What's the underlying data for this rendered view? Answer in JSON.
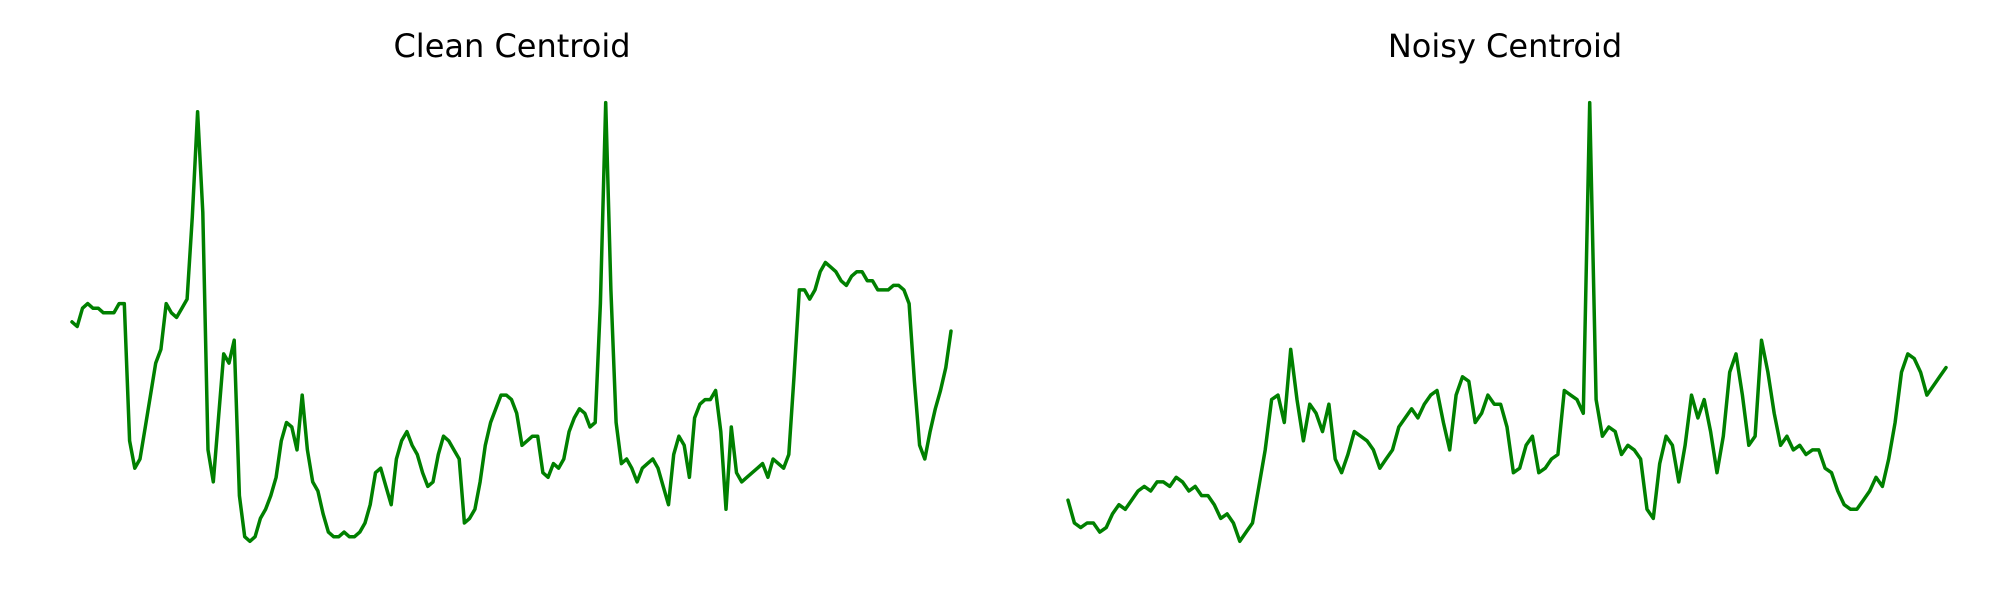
{
  "figure": {
    "line_color": "#008000",
    "background": "#ffffff"
  },
  "chart_data": [
    {
      "type": "line",
      "title": "Clean Centroid",
      "xlabel": "",
      "ylabel": "",
      "grid": false,
      "axes_visible": false,
      "ylim": [
        0,
        1
      ],
      "values": [
        0.51,
        0.5,
        0.54,
        0.55,
        0.54,
        0.54,
        0.53,
        0.53,
        0.53,
        0.55,
        0.55,
        0.25,
        0.19,
        0.21,
        0.28,
        0.35,
        0.42,
        0.45,
        0.55,
        0.53,
        0.52,
        0.54,
        0.56,
        0.74,
        0.97,
        0.75,
        0.23,
        0.16,
        0.3,
        0.44,
        0.42,
        0.47,
        0.13,
        0.04,
        0.03,
        0.04,
        0.08,
        0.1,
        0.13,
        0.17,
        0.25,
        0.29,
        0.28,
        0.23,
        0.35,
        0.23,
        0.16,
        0.14,
        0.09,
        0.05,
        0.04,
        0.04,
        0.05,
        0.04,
        0.04,
        0.05,
        0.07,
        0.11,
        0.18,
        0.19,
        0.15,
        0.11,
        0.21,
        0.25,
        0.27,
        0.24,
        0.22,
        0.18,
        0.15,
        0.16,
        0.22,
        0.26,
        0.25,
        0.23,
        0.21,
        0.07,
        0.08,
        0.1,
        0.16,
        0.24,
        0.29,
        0.32,
        0.35,
        0.35,
        0.34,
        0.31,
        0.24,
        0.25,
        0.26,
        0.26,
        0.18,
        0.17,
        0.2,
        0.19,
        0.21,
        0.27,
        0.3,
        0.32,
        0.31,
        0.28,
        0.29,
        0.55,
        0.99,
        0.58,
        0.29,
        0.2,
        0.21,
        0.19,
        0.16,
        0.19,
        0.2,
        0.21,
        0.19,
        0.15,
        0.11,
        0.22,
        0.26,
        0.24,
        0.17,
        0.3,
        0.33,
        0.34,
        0.34,
        0.36,
        0.27,
        0.1,
        0.28,
        0.18,
        0.16,
        0.17,
        0.18,
        0.19,
        0.2,
        0.17,
        0.21,
        0.2,
        0.19,
        0.22,
        0.39,
        0.58,
        0.58,
        0.56,
        0.58,
        0.62,
        0.64,
        0.63,
        0.62,
        0.6,
        0.59,
        0.61,
        0.62,
        0.62,
        0.6,
        0.6,
        0.58,
        0.58,
        0.58,
        0.59,
        0.59,
        0.58,
        0.55,
        0.38,
        0.24,
        0.21,
        0.27,
        0.32,
        0.36,
        0.41,
        0.49
      ]
    },
    {
      "type": "line",
      "title": "Noisy Centroid",
      "xlabel": "",
      "ylabel": "",
      "grid": false,
      "axes_visible": false,
      "ylim": [
        0,
        1
      ],
      "values": [
        0.12,
        0.07,
        0.06,
        0.07,
        0.07,
        0.05,
        0.06,
        0.09,
        0.11,
        0.1,
        0.12,
        0.14,
        0.15,
        0.14,
        0.16,
        0.16,
        0.15,
        0.17,
        0.16,
        0.14,
        0.15,
        0.13,
        0.13,
        0.11,
        0.08,
        0.09,
        0.07,
        0.03,
        0.05,
        0.07,
        0.15,
        0.23,
        0.34,
        0.35,
        0.29,
        0.45,
        0.34,
        0.25,
        0.33,
        0.31,
        0.27,
        0.33,
        0.21,
        0.18,
        0.22,
        0.27,
        0.26,
        0.25,
        0.23,
        0.19,
        0.21,
        0.23,
        0.28,
        0.3,
        0.32,
        0.3,
        0.33,
        0.35,
        0.36,
        0.29,
        0.23,
        0.35,
        0.39,
        0.38,
        0.29,
        0.31,
        0.35,
        0.33,
        0.33,
        0.28,
        0.18,
        0.19,
        0.24,
        0.26,
        0.18,
        0.19,
        0.21,
        0.22,
        0.36,
        0.35,
        0.34,
        0.31,
        0.99,
        0.34,
        0.26,
        0.28,
        0.27,
        0.22,
        0.24,
        0.23,
        0.21,
        0.1,
        0.08,
        0.2,
        0.26,
        0.24,
        0.16,
        0.24,
        0.35,
        0.3,
        0.34,
        0.27,
        0.18,
        0.26,
        0.4,
        0.44,
        0.35,
        0.24,
        0.26,
        0.47,
        0.4,
        0.31,
        0.24,
        0.26,
        0.23,
        0.24,
        0.22,
        0.23,
        0.23,
        0.19,
        0.18,
        0.14,
        0.11,
        0.1,
        0.1,
        0.12,
        0.14,
        0.17,
        0.15,
        0.21,
        0.29,
        0.4,
        0.44,
        0.43,
        0.4,
        0.35,
        0.37,
        0.39,
        0.41
      ]
    }
  ]
}
